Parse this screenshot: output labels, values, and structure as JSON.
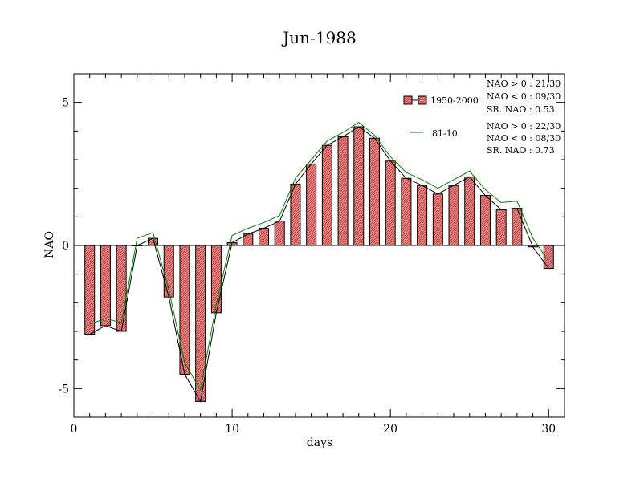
{
  "chart_data": {
    "type": "bar",
    "title": "Jun-1988",
    "xlabel": "days",
    "ylabel": "NAO",
    "xlim": [
      0,
      31
    ],
    "ylim": [
      -6,
      6
    ],
    "xticks": [
      0,
      10,
      20,
      30
    ],
    "yticks": [
      -5,
      0,
      5
    ],
    "x": [
      1,
      2,
      3,
      4,
      5,
      6,
      7,
      8,
      9,
      10,
      11,
      12,
      13,
      14,
      15,
      16,
      17,
      18,
      19,
      20,
      21,
      22,
      23,
      24,
      25,
      26,
      27,
      28,
      29,
      30
    ],
    "series": [
      {
        "name": "1950-2000",
        "kind": "bar",
        "color": "#e07070",
        "values": [
          -3.1,
          -2.8,
          -3.0,
          0.0,
          0.25,
          -1.8,
          -4.5,
          -5.45,
          -2.35,
          0.1,
          0.4,
          0.6,
          0.85,
          2.15,
          2.85,
          3.5,
          3.8,
          4.15,
          3.75,
          2.95,
          2.35,
          2.1,
          1.8,
          2.1,
          2.4,
          1.75,
          1.25,
          1.3,
          -0.05,
          -0.8
        ]
      },
      {
        "name": "81-10",
        "kind": "line",
        "color": "#008000",
        "values": [
          -2.75,
          -2.55,
          -2.7,
          0.25,
          0.45,
          -1.55,
          -4.1,
          -5.05,
          -2.05,
          0.35,
          0.6,
          0.8,
          1.05,
          2.35,
          3.0,
          3.65,
          3.95,
          4.3,
          3.85,
          3.1,
          2.55,
          2.3,
          2.0,
          2.3,
          2.6,
          1.95,
          1.5,
          1.55,
          0.25,
          -0.55
        ]
      }
    ],
    "legend_position": "top-right",
    "stats": {
      "set1": [
        "NAO > 0 : 21/30",
        "NAO < 0 : 09/30",
        "SR. NAO : 0.53"
      ],
      "set2": [
        "NAO > 0 : 22/30",
        "NAO < 0 : 08/30",
        "SR. NAO : 0.73"
      ]
    },
    "grid": false
  }
}
